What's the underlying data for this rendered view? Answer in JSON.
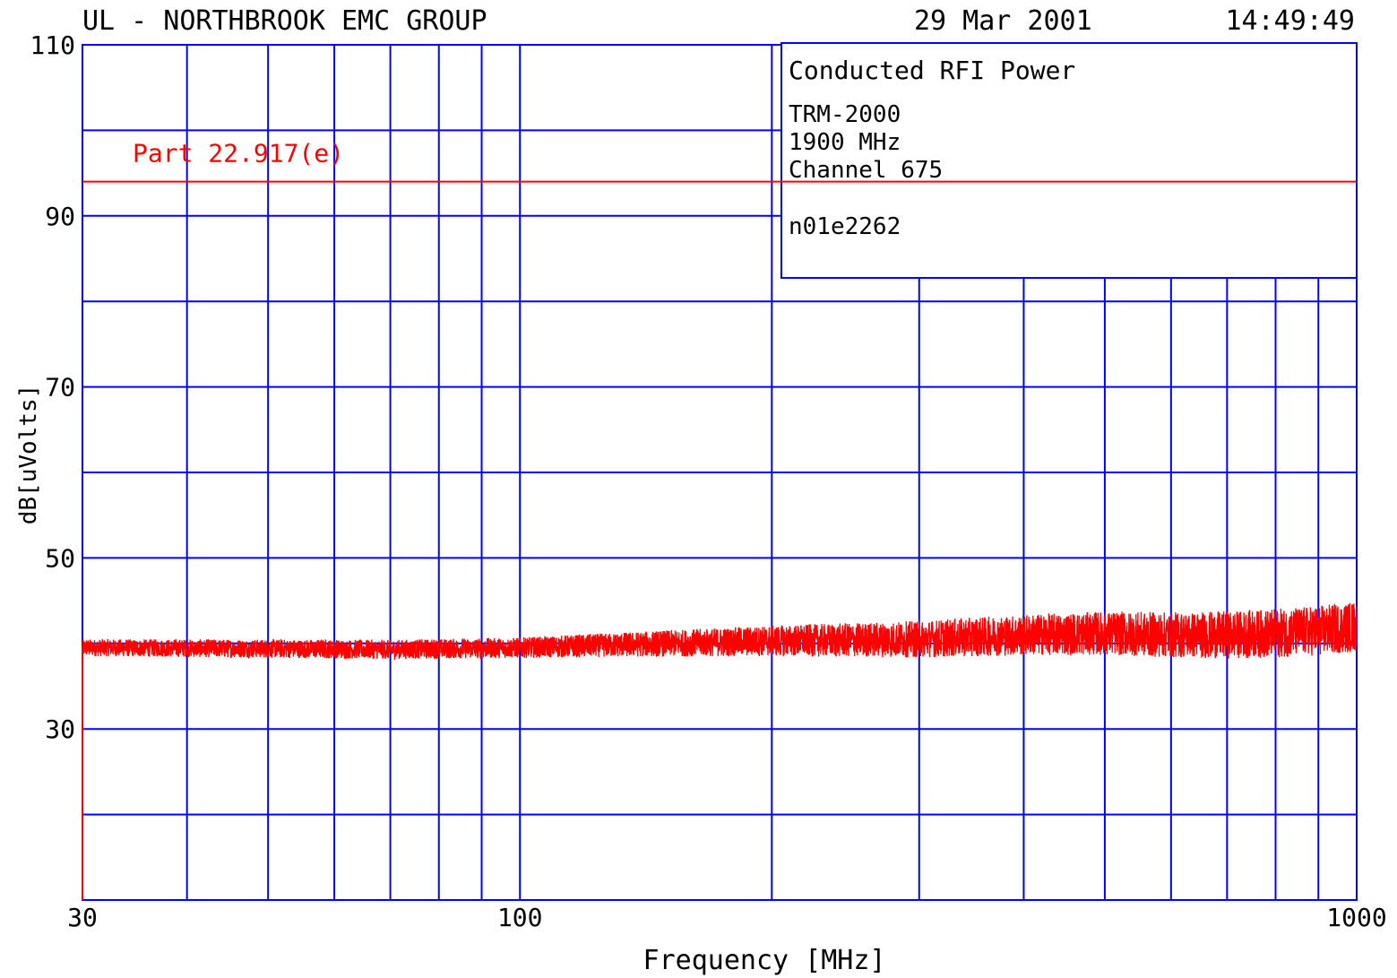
{
  "header": {
    "org": "UL - NORTHBROOK EMC GROUP",
    "date": "29 Mar 2001",
    "time": "14:49:49"
  },
  "info_box": {
    "title": "Conducted RFI Power",
    "model": "TRM-2000",
    "band": "1900 MHz",
    "channel": "Channel 675",
    "file_id": "n01e2262"
  },
  "colors": {
    "grid": "#0000ff",
    "trace": "#ff0000",
    "limit": "#ff0000",
    "text": "#000000"
  },
  "chart_data": {
    "type": "line",
    "xlabel": "Frequency [MHz]",
    "ylabel": "dB[uVolts]",
    "x_scale": "log",
    "xlim": [
      30,
      1000
    ],
    "ylim": [
      10,
      110
    ],
    "x_tick_labels": [
      {
        "value": 30,
        "label": "30"
      },
      {
        "value": 100,
        "label": "100"
      },
      {
        "value": 1000,
        "label": "1000"
      }
    ],
    "x_gridlines": [
      40,
      50,
      60,
      70,
      80,
      90,
      100,
      200,
      300,
      400,
      500,
      600,
      700,
      800,
      900
    ],
    "y_tick_labels": [
      {
        "value": 110,
        "label": "110"
      },
      {
        "value": 90,
        "label": "90"
      },
      {
        "value": 70,
        "label": "70"
      },
      {
        "value": 50,
        "label": "50"
      },
      {
        "value": 30,
        "label": "30"
      }
    ],
    "y_gridlines": [
      20,
      30,
      40,
      50,
      60,
      70,
      80,
      90,
      100
    ],
    "grid": true,
    "limit_line": {
      "name": "Part 22.917(e)",
      "value": 94
    },
    "series": [
      {
        "name": "",
        "x": [
          30,
          50,
          70,
          100,
          150,
          200,
          300,
          400,
          500,
          600,
          700,
          800,
          900,
          1000
        ],
        "values": [
          39.5,
          39.4,
          39.3,
          39.5,
          40.0,
          40.3,
          40.5,
          41.0,
          41.2,
          41.0,
          41.0,
          41.2,
          41.5,
          42.0
        ],
        "noise_band": [
          [
            30,
            1.0
          ],
          [
            100,
            1.2
          ],
          [
            200,
            1.8
          ],
          [
            400,
            2.4
          ],
          [
            1000,
            3.0
          ]
        ]
      }
    ]
  }
}
